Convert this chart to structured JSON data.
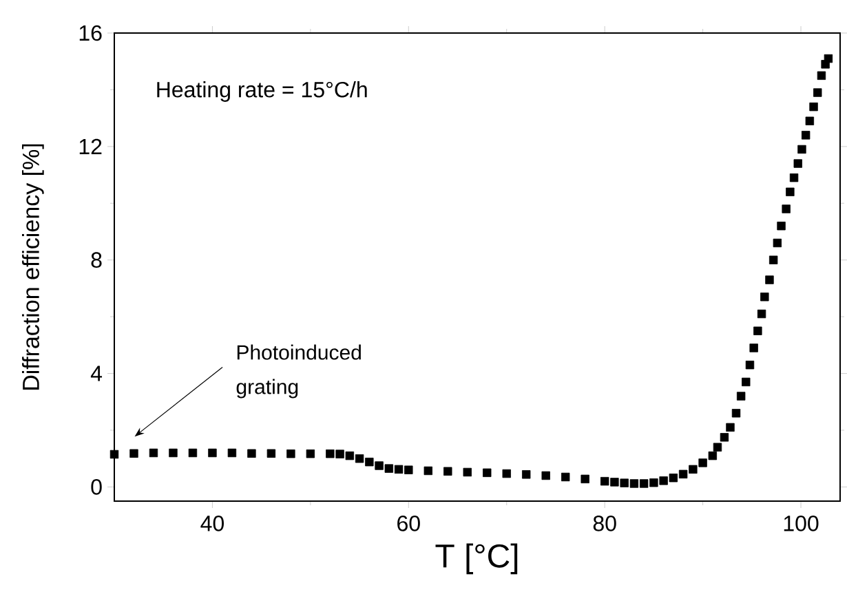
{
  "chart_data": {
    "type": "scatter",
    "xlabel": "T [°C]",
    "ylabel": "Diffraction efficiency [%]",
    "marker": "square",
    "color": "#000000",
    "xlim": [
      30,
      104
    ],
    "ylim": [
      -0.5,
      16
    ],
    "xticks": [
      40,
      60,
      80,
      100
    ],
    "yticks": [
      0,
      4,
      8,
      12,
      16
    ],
    "grid": false,
    "annotations": [
      "Heating rate = 15°C/h",
      "Photoinduced grating"
    ],
    "x": [
      30,
      32,
      34,
      36,
      38,
      40,
      42,
      44,
      46,
      48,
      50,
      52,
      53,
      54,
      55,
      56,
      57,
      58,
      59,
      60,
      62,
      64,
      66,
      68,
      70,
      72,
      74,
      76,
      78,
      80,
      81,
      82,
      83,
      84,
      85,
      86,
      87,
      88,
      89,
      90,
      91,
      91.5,
      92.2,
      92.8,
      93.4,
      93.9,
      94.4,
      94.8,
      95.2,
      95.6,
      96.0,
      96.3,
      96.8,
      97.2,
      97.6,
      98.0,
      98.5,
      98.9,
      99.3,
      99.7,
      100.1,
      100.5,
      100.9,
      101.3,
      101.7,
      102.1,
      102.5,
      102.8
    ],
    "values": [
      1.15,
      1.18,
      1.2,
      1.2,
      1.2,
      1.2,
      1.2,
      1.18,
      1.18,
      1.17,
      1.17,
      1.17,
      1.16,
      1.1,
      1.0,
      0.88,
      0.75,
      0.65,
      0.62,
      0.6,
      0.57,
      0.55,
      0.52,
      0.5,
      0.47,
      0.44,
      0.4,
      0.35,
      0.28,
      0.2,
      0.17,
      0.14,
      0.12,
      0.12,
      0.15,
      0.22,
      0.32,
      0.45,
      0.62,
      0.85,
      1.1,
      1.4,
      1.75,
      2.1,
      2.6,
      3.2,
      3.7,
      4.3,
      4.9,
      5.5,
      6.1,
      6.7,
      7.3,
      8.0,
      8.6,
      9.2,
      9.8,
      10.4,
      10.9,
      11.4,
      11.9,
      12.4,
      12.9,
      13.4,
      13.9,
      14.5,
      14.9,
      15.1
    ]
  }
}
